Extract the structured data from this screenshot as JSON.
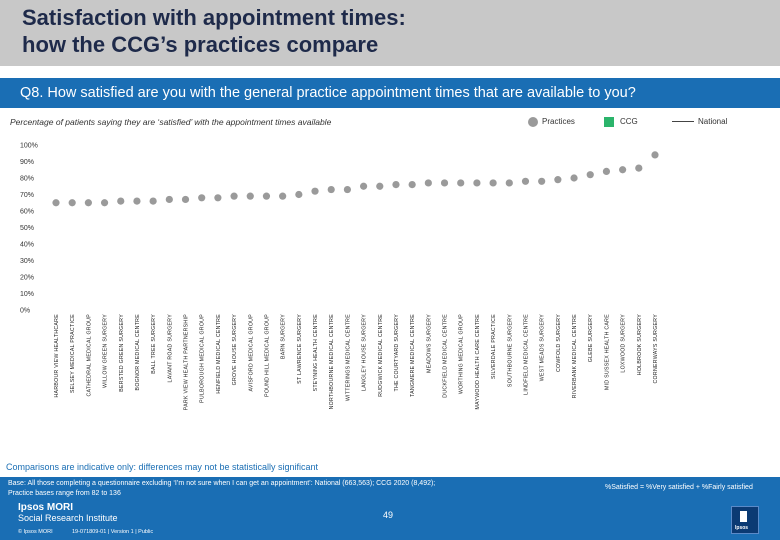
{
  "header": {
    "title_line1": "Satisfaction with appointment times:",
    "title_line2": "how the CCG’s practices compare",
    "question": "Q8. How satisfied are you with the general practice appointment times that are available to you?"
  },
  "subtitle": "Percentage of patients saying they are ‘satisfied’ with the appointment times available",
  "legend": {
    "practices": "Practices",
    "ccg": "CCG",
    "national": "National"
  },
  "colors": {
    "practice_marker": "#9a9a9a",
    "ccg": "#2bb46b",
    "brand_blue": "#1a6eb4"
  },
  "chart_data": {
    "type": "scatter",
    "ylim": [
      0,
      100
    ],
    "yticks": [
      "100%",
      "90%",
      "80%",
      "70%",
      "60%",
      "50%",
      "40%",
      "30%",
      "20%",
      "10%",
      "0%"
    ],
    "categories": [
      "HARBOUR VIEW HEALTHCARE",
      "SELSEY MEDICAL PRACTICE",
      "CATHEDRAL MEDICAL GROUP",
      "WILLOW GREEN SURGERY",
      "BERSTED GREEN SURGERY",
      "BOGNOR MEDICAL CENTRE",
      "BALL TREE SURGERY",
      "LAVANT ROAD SURGERY",
      "PARK VIEW HEALTH PARTNERSHIP",
      "PULBOROUGH MEDICAL GROUP",
      "HENFIELD MEDICAL CENTRE",
      "GROVE HOUSE SURGERY",
      "AVISFORD MEDICAL GROUP",
      "POUND HILL MEDICAL GROUP",
      "BARN SURGERY",
      "ST LAWRENCE SURGERY",
      "STEYNING HEALTH CENTRE",
      "NORTHBOURNE MEDICAL CENTRE",
      "WITTERINGS MEDICAL CENTRE",
      "LANGLEY HOUSE SURGERY",
      "RUDGWICK MEDICAL CENTRE",
      "THE COURTYARD SURGERY",
      "TANGMERE MEDICAL CENTRE",
      "MEADOWS SURGERY",
      "DUCKFIELD MEDICAL CENTRE",
      "WORTHING MEDICAL GROUP",
      "MAYWOOD HEALTH CARE CENTRE",
      "SILVERDALE PRACTICE",
      "SOUTHBOURNE SURGERY",
      "LINDFIELD MEDICAL CENTRE",
      "WEST MEADS SURGERY",
      "COWFOLD SURGERY",
      "RIVERBANK MEDICAL CENTRE",
      "GLEBE SURGERY",
      "MID SUSSEX HEALTH CARE",
      "LOXWOOD SURGERY",
      "HOLBROOK SURGERY",
      "CORNERWAYS SURGERY"
    ],
    "series": [
      {
        "name": "Practices",
        "values": [
          65,
          65,
          65,
          65,
          66,
          66,
          66,
          67,
          67,
          68,
          68,
          69,
          69,
          69,
          69,
          70,
          72,
          73,
          73,
          75,
          75,
          76,
          76,
          77,
          77,
          77,
          77,
          77,
          77,
          78,
          78,
          79,
          80,
          82,
          84,
          85,
          86,
          94
        ]
      }
    ]
  },
  "notes": {
    "caveat": "Comparisons are indicative only: differences may not be statistically significant",
    "base_line1": "Base: All those completing a questionnaire excluding ‘I’m not sure when I can get an appointment’: National (663,563); CCG 2020 (8,492);",
    "base_line2": "Practice bases range from 82 to 136",
    "satisfied_def": "%Satisfied = %Very satisfied + %Fairly satisfied"
  },
  "footer": {
    "logo_line1": "Ipsos MORI",
    "logo_line2": "Social Research Institute",
    "copyright": "© Ipsos MORI",
    "reference": "19-071809-01 | Version 1 | Public",
    "page": "49"
  }
}
